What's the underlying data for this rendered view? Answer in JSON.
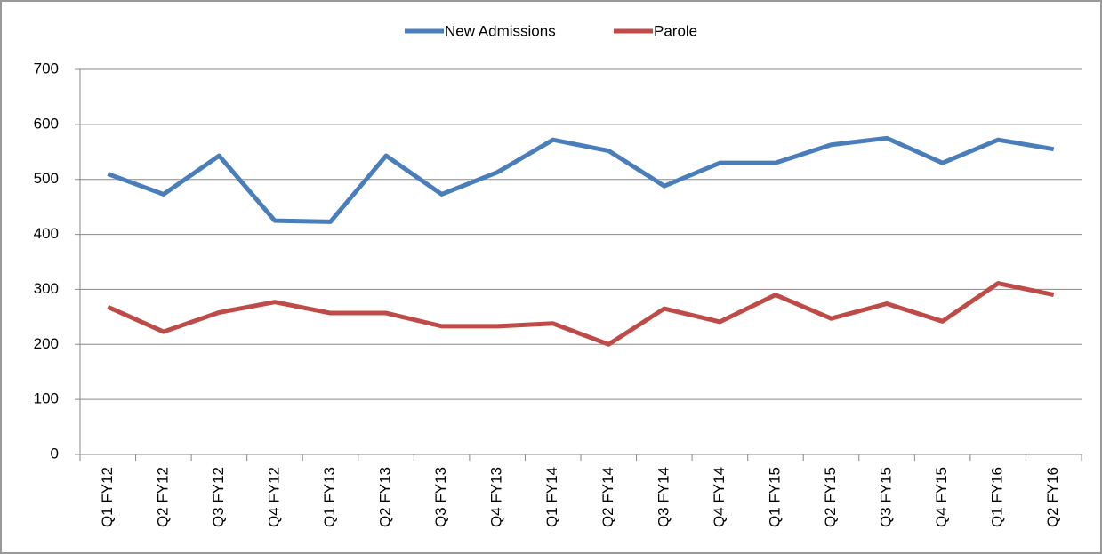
{
  "chart_data": {
    "type": "line",
    "categories": [
      "Q1 FY12",
      "Q2 FY12",
      "Q3 FY12",
      "Q4 FY12",
      "Q1 FY13",
      "Q2 FY13",
      "Q3 FY13",
      "Q4 FY13",
      "Q1 FY14",
      "Q2 FY14",
      "Q3 FY14",
      "Q4 FY14",
      "Q1 FY15",
      "Q2 FY15",
      "Q3 FY15",
      "Q4 FY15",
      "Q1 FY16",
      "Q2 FY16"
    ],
    "series": [
      {
        "name": "New Admissions",
        "color": "#4a7ebb",
        "values": [
          510,
          473,
          543,
          425,
          423,
          543,
          473,
          513,
          572,
          552,
          488,
          530,
          530,
          563,
          575,
          530,
          572,
          555
        ]
      },
      {
        "name": "Parole",
        "color": "#be4b48",
        "values": [
          268,
          223,
          258,
          277,
          257,
          257,
          233,
          233,
          238,
          200,
          265,
          241,
          290,
          247,
          274,
          242,
          311,
          290
        ]
      }
    ],
    "ylim": [
      0,
      700
    ],
    "yticks": [
      0,
      100,
      200,
      300,
      400,
      500,
      600,
      700
    ],
    "grid": true,
    "legend": "top"
  }
}
